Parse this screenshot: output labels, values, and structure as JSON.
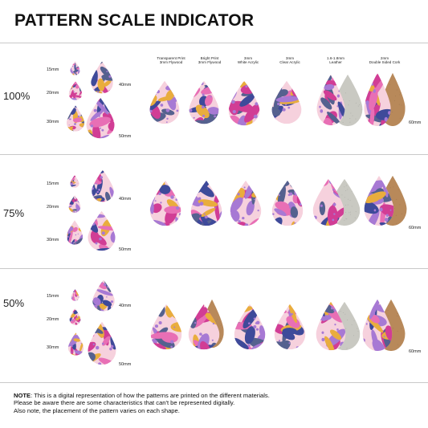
{
  "title": "PATTERN SCALE INDICATOR",
  "colors": {
    "pink": "#e86fb5",
    "magenta": "#d13d95",
    "navy": "#3e4a9a",
    "yellow": "#e9ad3d",
    "purple": "#a779d4",
    "blush": "#f6d1dd",
    "cork": "#b8895a",
    "leather": "#c9c9c2",
    "leaf_dark": "#55618f"
  },
  "materials": [
    {
      "line1": "Transparent Print",
      "line2": "3mm Flywood"
    },
    {
      "line1": "Bright Print",
      "line2": "3mm Flywood"
    },
    {
      "line1": "3mm",
      "line2": "White Acrylic"
    },
    {
      "line1": "3mm",
      "line2": "Clear Acrylic"
    },
    {
      "line1": "1.6-1.8mm",
      "line2": "Leather"
    },
    {
      "line1": "2mm",
      "line2": "Double Sided Cork"
    }
  ],
  "size_labels": {
    "small": "15mm",
    "medium": "20mm",
    "large": "30mm",
    "l40": "40mm",
    "l50": "50mm",
    "l60": "60mm"
  },
  "sections": [
    {
      "scale": "100%"
    },
    {
      "scale": "75%"
    },
    {
      "scale": "50%"
    }
  ],
  "note": {
    "label": "NOTE",
    "line1": ": This is a digital representation of how the patterns are printed on the different materials.",
    "line2": "Please be aware there are some characteristics that can't be represented digitally.",
    "line3": "Also note, the placement of the pattern varies on each shape."
  }
}
